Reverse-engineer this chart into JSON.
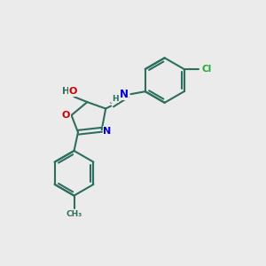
{
  "background_color": "#ebebeb",
  "bond_color": "#2d6e5e",
  "bond_width": 1.5,
  "atom_colors": {
    "O": "#cc0000",
    "N": "#0000cc",
    "Cl": "#22aa33",
    "C": "#2d6e5e",
    "H": "#2d6e5e"
  },
  "font_size": 7.5,
  "fig_width": 3.0,
  "fig_height": 3.0,
  "dpi": 100,
  "xlim": [
    0,
    10
  ],
  "ylim": [
    0,
    10
  ]
}
